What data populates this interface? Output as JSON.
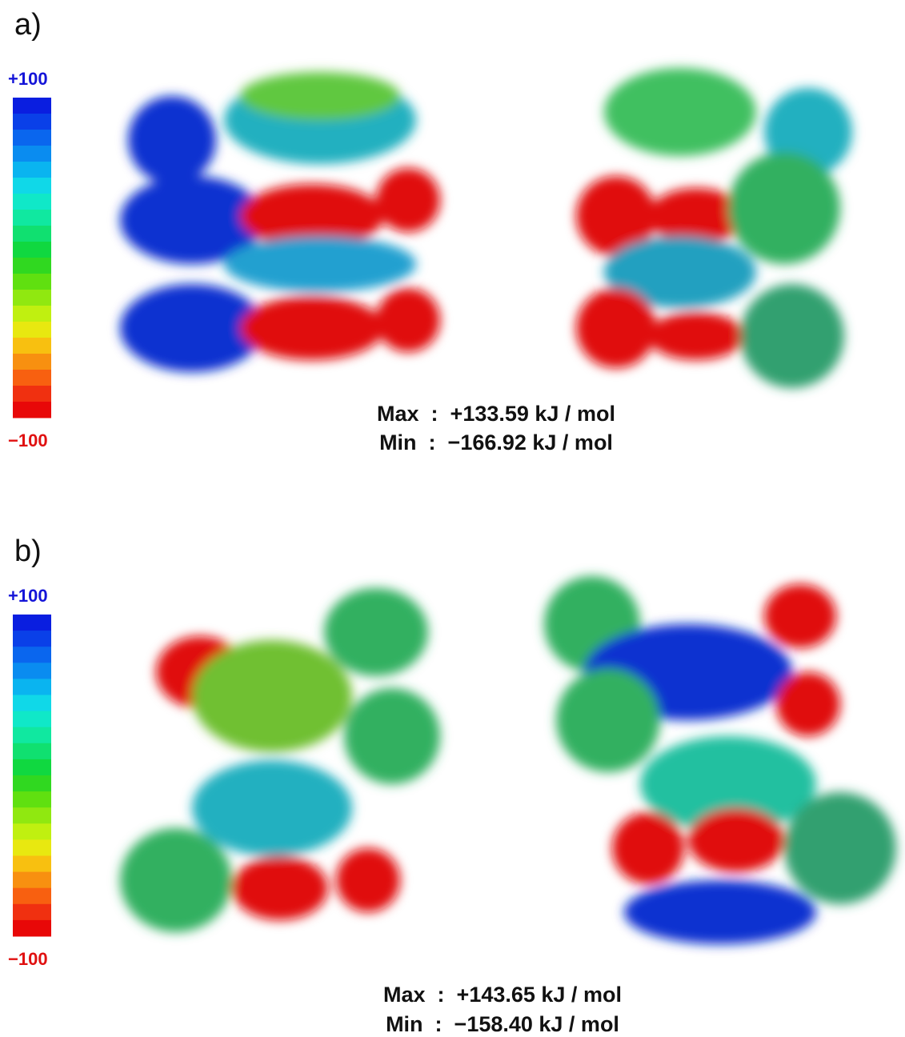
{
  "panels": [
    {
      "label": "a)",
      "scale_max": "+100",
      "scale_min": "−100",
      "stats": [
        "Max  :  +133.59 kJ / mol",
        "Min  :  −166.92 kJ / mol"
      ]
    },
    {
      "label": "b)",
      "scale_max": "+100",
      "scale_min": "−100",
      "stats": [
        "Max  :  +143.65 kJ / mol",
        "Min  :  −158.40 kJ / mol"
      ]
    }
  ]
}
